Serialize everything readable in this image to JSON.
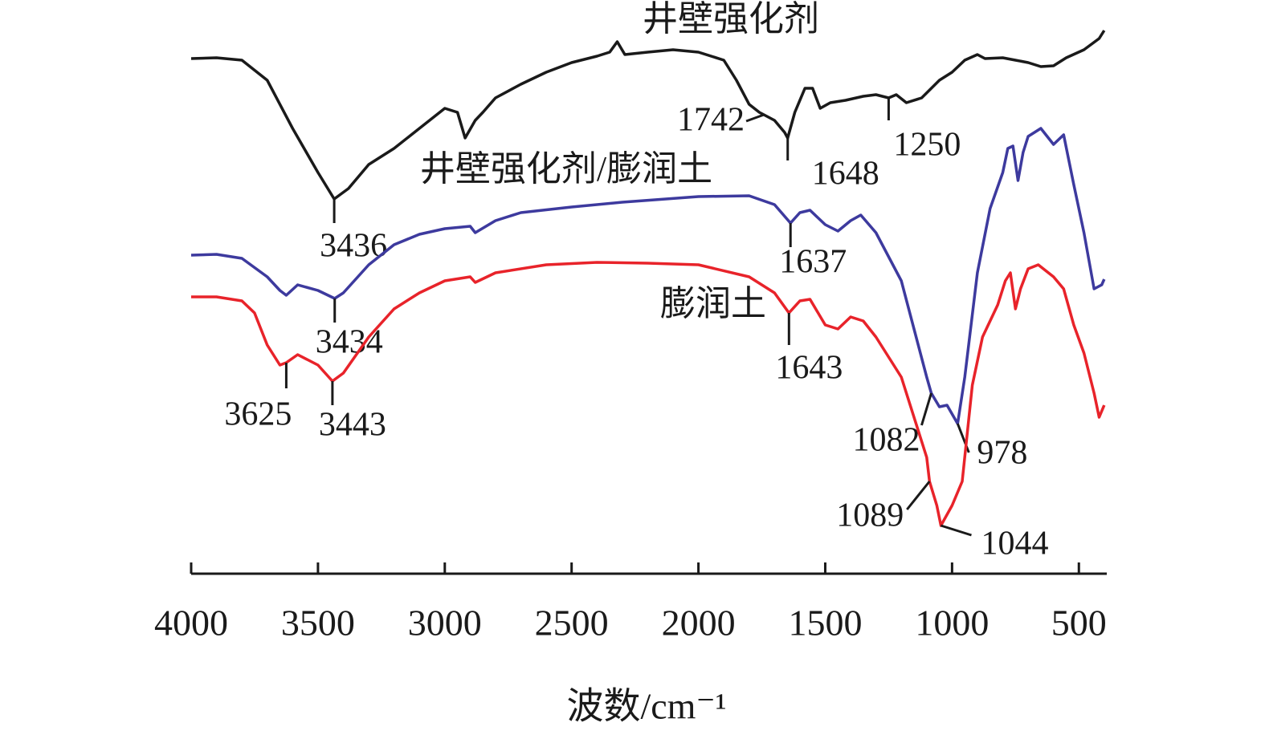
{
  "chart_data": {
    "type": "line",
    "x_label": "波数/cm⁻¹",
    "xlim": [
      4000,
      390
    ],
    "xticks": [
      4000,
      3500,
      3000,
      2500,
      2000,
      1500,
      1000,
      500
    ],
    "ylim": [
      0,
      65
    ],
    "series": [
      {
        "name": "井壁强化剂",
        "color": "#1a1a1a",
        "x": [
          4000,
          3900,
          3800,
          3700,
          3600,
          3500,
          3436,
          3380,
          3300,
          3200,
          3100,
          3000,
          2950,
          2920,
          2880,
          2850,
          2800,
          2700,
          2600,
          2500,
          2400,
          2350,
          2320,
          2290,
          2200,
          2100,
          2000,
          1900,
          1850,
          1800,
          1760,
          1742,
          1700,
          1660,
          1648,
          1620,
          1580,
          1550,
          1520,
          1480,
          1420,
          1350,
          1300,
          1250,
          1220,
          1180,
          1120,
          1050,
          1000,
          950,
          900,
          870,
          800,
          750,
          700,
          650,
          600,
          550,
          480,
          420,
          400
        ],
        "values": [
          60.7,
          60.8,
          60.5,
          58.0,
          52.0,
          46.5,
          43.2,
          44.5,
          47.5,
          49.5,
          52.0,
          54.5,
          54.0,
          50.8,
          53.0,
          54.0,
          55.8,
          57.5,
          59.0,
          60.2,
          61.0,
          61.5,
          62.8,
          61.2,
          61.5,
          61.8,
          61.5,
          60.5,
          58.0,
          55.0,
          54.0,
          53.7,
          53.0,
          51.5,
          50.8,
          54.0,
          57.0,
          57.0,
          54.5,
          55.2,
          55.5,
          56.0,
          56.2,
          55.8,
          56.2,
          55.2,
          55.8,
          58.0,
          59.0,
          60.5,
          61.2,
          60.7,
          60.8,
          60.5,
          60.2,
          59.7,
          59.8,
          60.8,
          61.8,
          63.2,
          64.2
        ],
        "peaks": [
          3436,
          1742,
          1648,
          1250
        ]
      },
      {
        "name": "井壁强化剂/膨润土",
        "color": "#3d3a9e",
        "x": [
          4000,
          3900,
          3800,
          3700,
          3650,
          3625,
          3580,
          3500,
          3434,
          3400,
          3300,
          3200,
          3100,
          3000,
          2900,
          2880,
          2800,
          2700,
          2500,
          2300,
          2000,
          1800,
          1700,
          1637,
          1600,
          1560,
          1500,
          1450,
          1400,
          1360,
          1300,
          1200,
          1150,
          1100,
          1082,
          1050,
          1020,
          978,
          950,
          900,
          850,
          800,
          780,
          760,
          740,
          720,
          700,
          650,
          600,
          560,
          520,
          480,
          440,
          410,
          400
        ],
        "values": [
          36.2,
          36.3,
          35.8,
          33.5,
          31.8,
          31.2,
          32.5,
          31.8,
          30.8,
          31.5,
          35.0,
          37.5,
          38.8,
          39.5,
          39.8,
          39.0,
          40.5,
          41.5,
          42.2,
          42.8,
          43.5,
          43.6,
          42.5,
          40.2,
          41.5,
          41.8,
          40.0,
          39.2,
          40.5,
          41.2,
          39.0,
          33.0,
          27.0,
          21.0,
          19.0,
          17.3,
          17.5,
          15.2,
          21.0,
          34.0,
          42.0,
          46.5,
          49.5,
          49.8,
          45.5,
          49.0,
          51.0,
          52.0,
          50.0,
          51.2,
          45.0,
          39.0,
          32.0,
          32.5,
          33.2
        ],
        "peaks": [
          3434,
          1637,
          1082,
          978
        ]
      },
      {
        "name": "膨润土",
        "color": "#e8232a",
        "x": [
          4000,
          3900,
          3800,
          3750,
          3700,
          3650,
          3625,
          3580,
          3500,
          3443,
          3400,
          3300,
          3200,
          3100,
          3000,
          2900,
          2880,
          2800,
          2600,
          2400,
          2200,
          2000,
          1800,
          1700,
          1643,
          1600,
          1560,
          1500,
          1450,
          1400,
          1350,
          1300,
          1200,
          1150,
          1100,
          1089,
          1060,
          1044,
          1000,
          960,
          920,
          880,
          820,
          790,
          770,
          750,
          730,
          700,
          660,
          600,
          560,
          520,
          480,
          440,
          420,
          400
        ],
        "values": [
          31.0,
          31.0,
          30.5,
          29.0,
          25.0,
          22.5,
          22.8,
          23.8,
          22.5,
          20.5,
          21.5,
          26.0,
          29.5,
          31.5,
          33.0,
          33.5,
          32.8,
          34.0,
          35.0,
          35.3,
          35.2,
          35.0,
          33.5,
          31.5,
          29.0,
          30.5,
          30.7,
          27.5,
          27.0,
          28.5,
          28.0,
          26.0,
          21.0,
          16.0,
          11.0,
          8.0,
          5.0,
          2.5,
          5.0,
          8.0,
          20.0,
          26.0,
          30.0,
          33.0,
          34.0,
          29.5,
          32.0,
          34.5,
          35.0,
          33.5,
          32.0,
          27.5,
          24.0,
          19.0,
          16.0,
          17.5
        ],
        "peaks": [
          3625,
          3443,
          1643,
          1089,
          1044
        ]
      }
    ]
  }
}
